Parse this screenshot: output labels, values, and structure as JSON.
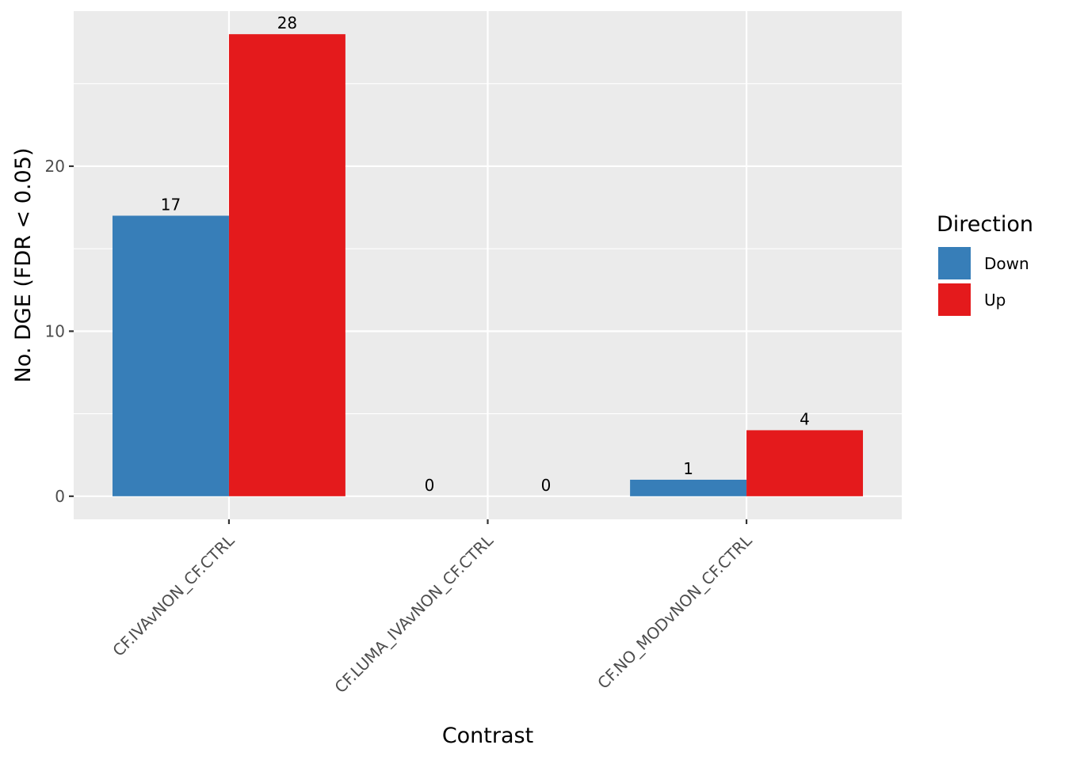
{
  "chart_data": {
    "type": "bar",
    "xlabel": "Contrast",
    "ylabel": "No. DGE (FDR < 0.05)",
    "categories": [
      "CF.IVAvNON_CF.CTRL",
      "CF.LUMA_IVAvNON_CF.CTRL",
      "CF.NO_MODvNON_CF.CTRL"
    ],
    "series": [
      {
        "name": "Down",
        "values": [
          17,
          0,
          1
        ],
        "color": "#377eb8"
      },
      {
        "name": "Up",
        "values": [
          28,
          0,
          4
        ],
        "color": "#e41a1c"
      }
    ],
    "bar_labels": [
      [
        "17",
        "0",
        "1"
      ],
      [
        "28",
        "0",
        "4"
      ]
    ],
    "ylim": [
      -1.4,
      29.4
    ],
    "yticks": [
      0,
      10,
      20
    ],
    "ytick_labels": [
      "0",
      "10",
      "20"
    ],
    "grid": true,
    "legend": {
      "title": "Direction",
      "position": "right",
      "entries": [
        "Down",
        "Up"
      ]
    },
    "colors": {
      "panel": "#ebebeb",
      "grid": "#ffffff",
      "tick_text": "#4d4d4d"
    }
  }
}
